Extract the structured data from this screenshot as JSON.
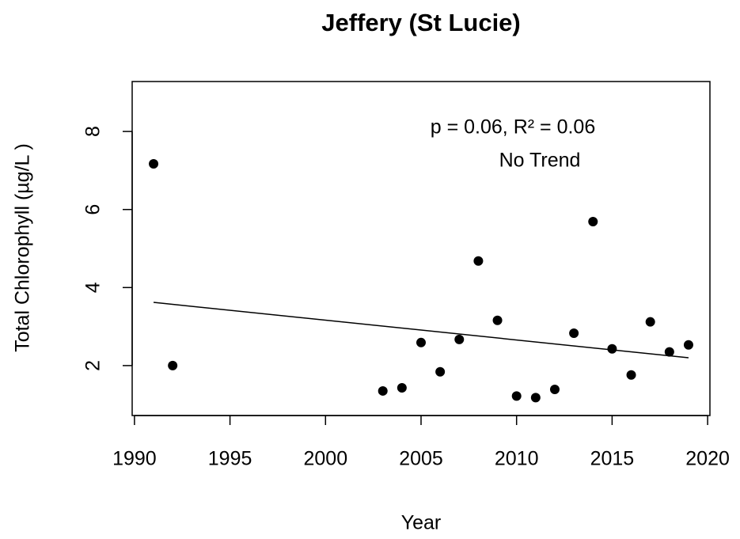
{
  "chart_data": {
    "type": "scatter",
    "title": "Jeffery (St Lucie)",
    "x_label": "Year",
    "y_label": "Total Chlorophyll (µg/L )",
    "annotations": [
      "p = 0.06, R² = 0.06",
      "No Trend"
    ],
    "x": [
      1991,
      1992,
      2003,
      2004,
      2005,
      2006,
      2007,
      2008,
      2009,
      2010,
      2011,
      2012,
      2013,
      2014,
      2015,
      2016,
      2017,
      2018,
      2019
    ],
    "values": [
      7.17,
      2.0,
      1.35,
      1.43,
      2.59,
      1.84,
      2.67,
      4.68,
      3.16,
      1.22,
      1.18,
      1.39,
      2.83,
      5.69,
      2.43,
      1.76,
      3.12,
      2.35,
      2.53
    ],
    "color": "#000000",
    "trend": {
      "x": [
        1991,
        2019
      ],
      "values": [
        3.62,
        2.2
      ]
    },
    "xlim": [
      1989.88,
      2020.12
    ],
    "ylim": [
      0.72,
      9.28
    ],
    "xticks": [
      1990,
      1995,
      2000,
      2005,
      2010,
      2015,
      2020
    ],
    "yticks": [
      2,
      4,
      6,
      8
    ]
  }
}
